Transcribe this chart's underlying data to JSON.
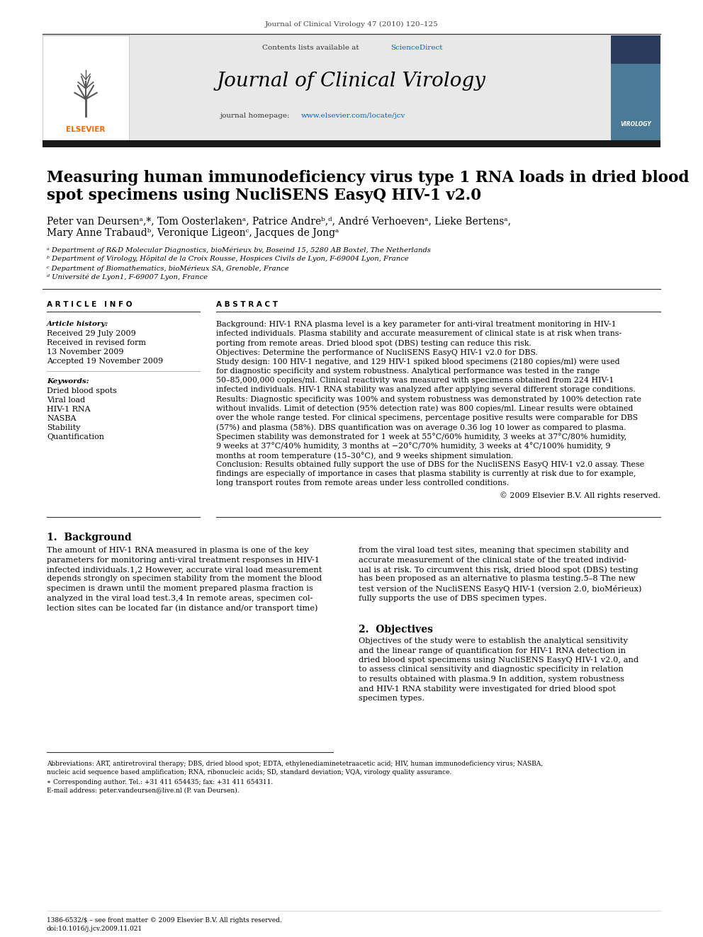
{
  "journal_header": "Journal of Clinical Virology 47 (2010) 120–125",
  "sciencedirect_color": "#0066cc",
  "journal_title": "Journal of Clinical Virology",
  "homepage_color": "#0066cc",
  "header_bg": "#e8e8e8",
  "dark_bar_color": "#1a1a1a",
  "paper_title_line1": "Measuring human immunodeficiency virus type 1 RNA loads in dried blood",
  "paper_title_line2": "spot specimens using NucliSENS EasyQ HIV-1 v2.0",
  "authors_line1": "Peter van Deursenᵃ,*, Tom Oosterlakenᵃ, Patrice Andreᵇ,ᵈ, André Verhoevenᵃ, Lieke Bertensᵃ,",
  "authors_line2": "Mary Anne Trabaudᵇ, Veronique Ligeonᶜ, Jacques de Jongᵃ",
  "affil_a": "ᵃ Department of R&D Molecular Diagnostics, bioMérieux bv, Boseind 15, 5280 AB Boxtel, The Netherlands",
  "affil_b": "ᵇ Department of Virology, Hôpital de la Croix Rousse, Hospices Civils de Lyon, F-69004 Lyon, France",
  "affil_c": "ᶜ Department of Biomathematics, bioMérieux SA, Grenoble, France",
  "affil_d": "ᵈ Université de Lyon1, F-69007 Lyon, France",
  "article_info_title": "A R T I C L E   I N F O",
  "history_title": "Article history:",
  "history_lines": [
    "Received 29 July 2009",
    "Received in revised form",
    "13 November 2009",
    "Accepted 19 November 2009"
  ],
  "keywords_title": "Keywords:",
  "keywords": [
    "Dried blood spots",
    "Viral load",
    "HIV-1 RNA",
    "NASBA",
    "Stability",
    "Quantification"
  ],
  "abstract_title": "A B S T R A C T",
  "abstract_lines": [
    "Background: HIV-1 RNA plasma level is a key parameter for anti-viral treatment monitoring in HIV-1",
    "infected individuals. Plasma stability and accurate measurement of clinical state is at risk when trans-",
    "porting from remote areas. Dried blood spot (DBS) testing can reduce this risk.",
    "Objectives: Determine the performance of NucliSENS EasyQ HIV-1 v2.0 for DBS.",
    "Study design: 100 HIV-1 negative, and 129 HIV-1 spiked blood specimens (2180 copies/ml) were used",
    "for diagnostic specificity and system robustness. Analytical performance was tested in the range",
    "50–85,000,000 copies/ml. Clinical reactivity was measured with specimens obtained from 224 HIV-1",
    "infected individuals. HIV-1 RNA stability was analyzed after applying several different storage conditions.",
    "Results: Diagnostic specificity was 100% and system robustness was demonstrated by 100% detection rate",
    "without invalids. Limit of detection (95% detection rate) was 800 copies/ml. Linear results were obtained",
    "over the whole range tested. For clinical specimens, percentage positive results were comparable for DBS",
    "(57%) and plasma (58%). DBS quantification was on average 0.36 log 10 lower as compared to plasma.",
    "Specimen stability was demonstrated for 1 week at 55°C/60% humidity, 3 weeks at 37°C/80% humidity,",
    "9 weeks at 37°C/40% humidity, 3 months at −20°C/70% humidity, 3 weeks at 4°C/100% humidity, 9",
    "months at room temperature (15–30°C), and 9 weeks shipment simulation.",
    "Conclusion: Results obtained fully support the use of DBS for the NucliSENS EasyQ HIV-1 v2.0 assay. These",
    "findings are especially of importance in cases that plasma stability is currently at risk due to for example,",
    "long transport routes from remote areas under less controlled conditions."
  ],
  "copyright": "© 2009 Elsevier B.V. All rights reserved.",
  "section1_title": "1.  Background",
  "section1_left": [
    "The amount of HIV-1 RNA measured in plasma is one of the key",
    "parameters for monitoring anti-viral treatment responses in HIV-1",
    "infected individuals.1,2 However, accurate viral load measurement",
    "depends strongly on specimen stability from the moment the blood",
    "specimen is drawn until the moment prepared plasma fraction is",
    "analyzed in the viral load test.3,4 In remote areas, specimen col-",
    "lection sites can be located far (in distance and/or transport time)"
  ],
  "section1_right": [
    "from the viral load test sites, meaning that specimen stability and",
    "accurate measurement of the clinical state of the treated individ-",
    "ual is at risk. To circumvent this risk, dried blood spot (DBS) testing",
    "has been proposed as an alternative to plasma testing.5–8 The new",
    "test version of the NucliSENS EasyQ HIV-1 (version 2.0, bioMérieux)",
    "fully supports the use of DBS specimen types."
  ],
  "section2_title": "2.  Objectives",
  "section2_lines": [
    "Objectives of the study were to establish the analytical sensitivity",
    "and the linear range of quantification for HIV-1 RNA detection in",
    "dried blood spot specimens using NucliSENS EasyQ HIV-1 v2.0, and",
    "to assess clinical sensitivity and diagnostic specificity in relation",
    "to results obtained with plasma.9 In addition, system robustness",
    "and HIV-1 RNA stability were investigated for dried blood spot",
    "specimen types."
  ],
  "footnote_abbrev": "Abbreviations: ART, antiretroviral therapy; DBS, dried blood spot; EDTA, ethylenediaminetetraacetic acid; HIV, human immunodeficiency virus; NASBA,",
  "footnote_abbrev2": "nucleic acid sequence based amplification; RNA, ribonucleic acids; SD, standard deviation; VQA, virology quality assurance.",
  "footnote_corresponding": "∗ Corresponding author. Tel.: +31 411 654435; fax: +31 411 654311.",
  "footnote_email": "E-mail address: peter.vandeursen@live.nl (P. van Deursen).",
  "footnote_issn": "1386-6532/$ – see front matter © 2009 Elsevier B.V. All rights reserved.",
  "footnote_doi": "doi:10.1016/j.jcv.2009.11.021",
  "elsevier_orange": "#ff6600",
  "bg_color": "#ffffff",
  "text_color": "#000000"
}
